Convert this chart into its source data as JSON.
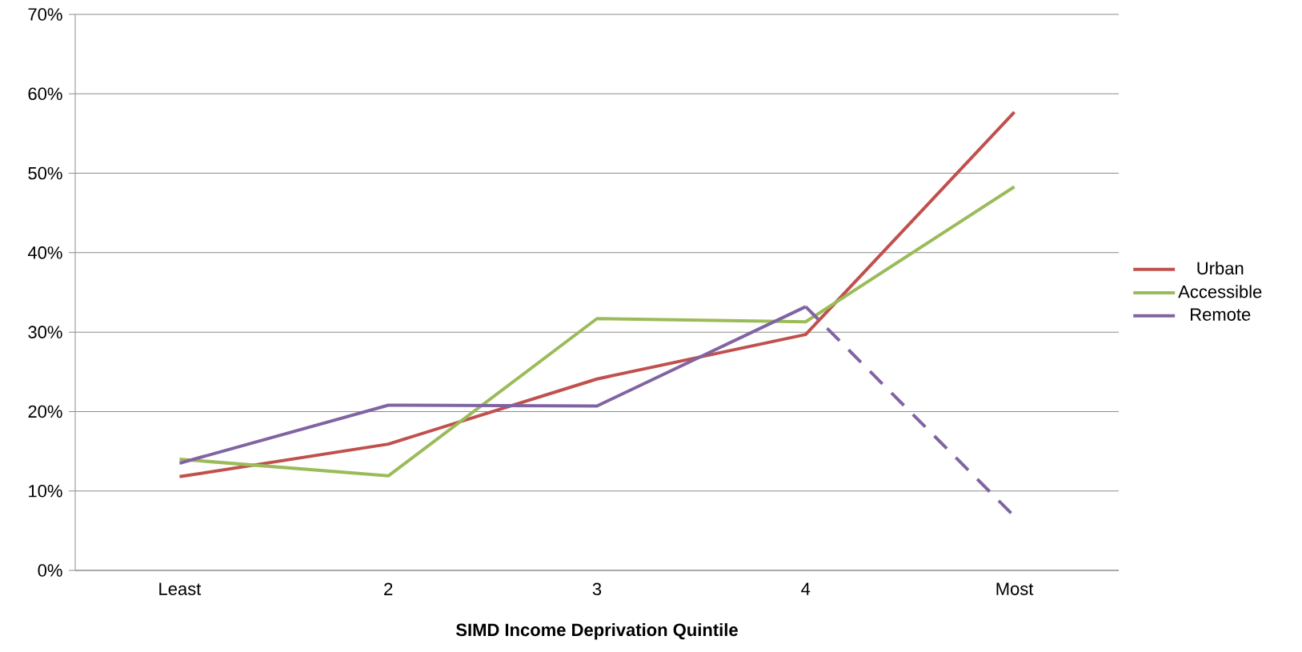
{
  "chart_data": {
    "type": "line",
    "xlabel": "SIMD Income Deprivation Quintile",
    "categories": [
      "Least",
      "2",
      "3",
      "4",
      "Most"
    ],
    "series": [
      {
        "name": "Urban",
        "color": "#c0504d",
        "values": [
          11.8,
          15.9,
          24.1,
          29.7,
          57.7
        ]
      },
      {
        "name": "Accessible",
        "color": "#9bbb59",
        "values": [
          14.0,
          11.9,
          31.7,
          31.3,
          48.3
        ]
      },
      {
        "name": "Remote",
        "color": "#8064a2",
        "values": [
          13.5,
          20.8,
          20.7,
          33.2,
          null
        ]
      },
      {
        "color": "#8064a2",
        "line_style": "dashed",
        "values": [
          null,
          null,
          null,
          33.2,
          6.8
        ]
      }
    ],
    "ylim": [
      0,
      70
    ],
    "yticks": [
      {
        "value": 0,
        "label": "0%"
      },
      {
        "value": 10,
        "label": "10%"
      },
      {
        "value": 20,
        "label": "20%"
      },
      {
        "value": 30,
        "label": "30%"
      },
      {
        "value": 40,
        "label": "40%"
      },
      {
        "value": 50,
        "label": "50%"
      },
      {
        "value": 60,
        "label": "60%"
      },
      {
        "value": 70,
        "label": "70%"
      }
    ],
    "grid": "y",
    "legend": "right"
  }
}
